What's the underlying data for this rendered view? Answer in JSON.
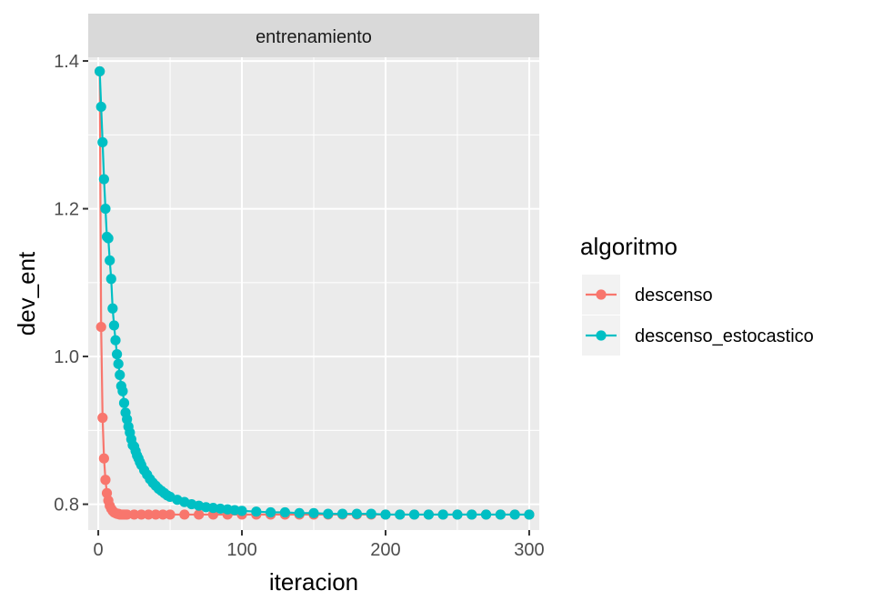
{
  "chart_data": {
    "type": "line",
    "facet_label": "entrenamiento",
    "xlabel": "iteracion",
    "ylabel": "dev_ent",
    "xlim": [
      -7,
      307
    ],
    "ylim": [
      0.765,
      1.405
    ],
    "x_ticks": [
      0,
      100,
      200,
      300
    ],
    "x_tick_labels": [
      "0",
      "100",
      "200",
      "300"
    ],
    "y_ticks": [
      0.8,
      1.0,
      1.2,
      1.4
    ],
    "y_tick_labels": [
      "0.8",
      "1.0",
      "1.2",
      "1.4"
    ],
    "grid": true,
    "legend": {
      "title": "algoritmo",
      "position": "right",
      "entries": [
        "descenso",
        "descenso_estocastico"
      ]
    },
    "series": [
      {
        "name": "descenso",
        "color": "#F8766D",
        "x": [
          1,
          2,
          3,
          4,
          5,
          6,
          7,
          8,
          9,
          10,
          11,
          12,
          13,
          14,
          15,
          16,
          17,
          18,
          19,
          20,
          25,
          30,
          35,
          40,
          45,
          50,
          60,
          70,
          80,
          90,
          100,
          110,
          120,
          130,
          140,
          150,
          160,
          170,
          180,
          190,
          200,
          210,
          220,
          230,
          240,
          250,
          260,
          270,
          280,
          290,
          300
        ],
        "y": [
          1.386,
          1.04,
          0.917,
          0.862,
          0.833,
          0.815,
          0.805,
          0.798,
          0.794,
          0.791,
          0.789,
          0.788,
          0.787,
          0.787,
          0.786,
          0.786,
          0.786,
          0.786,
          0.786,
          0.786,
          0.786,
          0.786,
          0.786,
          0.786,
          0.786,
          0.786,
          0.786,
          0.786,
          0.786,
          0.786,
          0.786,
          0.786,
          0.786,
          0.786,
          0.786,
          0.786,
          0.786,
          0.786,
          0.786,
          0.786,
          0.786,
          0.786,
          0.786,
          0.786,
          0.786,
          0.786,
          0.786,
          0.786,
          0.786,
          0.786,
          0.786
        ]
      },
      {
        "name": "descenso_estocastico",
        "color": "#00BFC4",
        "x": [
          1,
          2,
          3,
          4,
          5,
          6,
          7,
          8,
          9,
          10,
          11,
          12,
          13,
          14,
          15,
          16,
          17,
          18,
          19,
          20,
          21,
          22,
          23,
          24,
          25,
          26,
          27,
          28,
          29,
          30,
          32,
          34,
          36,
          38,
          40,
          42,
          44,
          46,
          48,
          50,
          55,
          60,
          65,
          70,
          75,
          80,
          85,
          90,
          95,
          100,
          110,
          120,
          130,
          140,
          150,
          160,
          170,
          180,
          190,
          200,
          210,
          220,
          230,
          240,
          250,
          260,
          270,
          280,
          290,
          300
        ],
        "y": [
          1.386,
          1.338,
          1.29,
          1.24,
          1.2,
          1.162,
          1.16,
          1.13,
          1.105,
          1.065,
          1.042,
          1.022,
          1.003,
          0.99,
          0.975,
          0.96,
          0.953,
          0.937,
          0.924,
          0.915,
          0.905,
          0.897,
          0.888,
          0.88,
          0.878,
          0.872,
          0.866,
          0.862,
          0.857,
          0.853,
          0.846,
          0.84,
          0.834,
          0.829,
          0.825,
          0.821,
          0.818,
          0.815,
          0.812,
          0.81,
          0.806,
          0.803,
          0.8,
          0.798,
          0.796,
          0.795,
          0.794,
          0.793,
          0.792,
          0.791,
          0.79,
          0.789,
          0.789,
          0.788,
          0.788,
          0.787,
          0.787,
          0.787,
          0.787,
          0.786,
          0.786,
          0.786,
          0.786,
          0.786,
          0.786,
          0.786,
          0.786,
          0.786,
          0.786,
          0.786
        ]
      }
    ]
  }
}
